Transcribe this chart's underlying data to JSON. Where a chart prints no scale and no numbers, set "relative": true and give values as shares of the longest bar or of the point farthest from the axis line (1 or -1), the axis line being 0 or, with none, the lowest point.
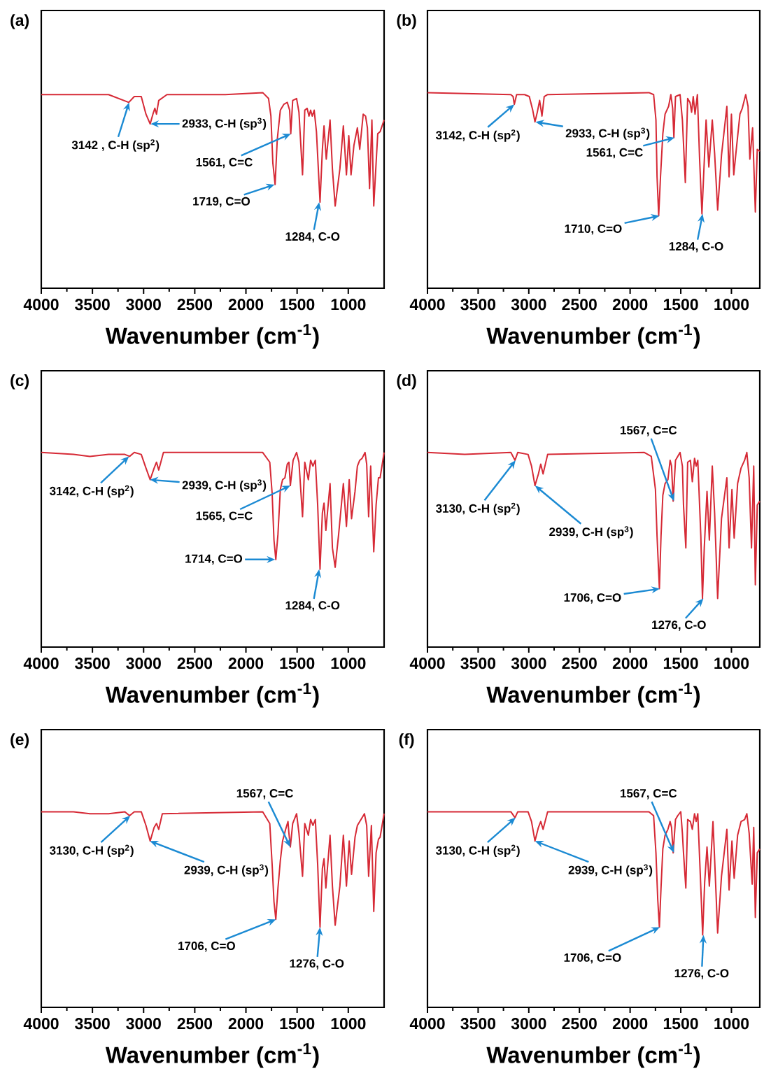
{
  "chart_data": [
    {
      "type": "line",
      "title": "(a)",
      "xlabel": "Wavenumber (cm$^{-1}$)",
      "relative": true,
      "xlim": [
        4000,
        650
      ],
      "xticks": [
        4000,
        3500,
        3000,
        2500,
        2000,
        1500,
        1000
      ],
      "x": [
        4000,
        3342,
        3145,
        3091,
        3023,
        2977,
        2936,
        2909,
        2890,
        2874,
        2852,
        2772,
        2201,
        1836,
        1779,
        1756,
        1737,
        1715,
        1694,
        1664,
        1630,
        1596,
        1573,
        1562,
        1543,
        1505,
        1482,
        1447,
        1425,
        1402,
        1384,
        1368,
        1352,
        1333,
        1311,
        1276,
        1253,
        1237,
        1215,
        1178,
        1155,
        1128,
        1082,
        1048,
        1018,
        995,
        973,
        945,
        911,
        888,
        854,
        831,
        813,
        792,
        769,
        751,
        728,
        712,
        689,
        650
      ],
      "series": [
        {
          "color": "#d62a36",
          "values": [
            0.99,
            0.99,
            0.95,
            0.98,
            0.98,
            0.89,
            0.84,
            0.89,
            0.92,
            0.89,
            0.96,
            0.99,
            0.99,
            1.0,
            0.97,
            0.88,
            0.64,
            0.53,
            0.76,
            0.91,
            0.94,
            0.95,
            0.91,
            0.79,
            0.96,
            0.97,
            0.9,
            0.58,
            0.91,
            0.92,
            0.88,
            0.91,
            0.88,
            0.91,
            0.8,
            0.44,
            0.71,
            0.83,
            0.66,
            0.86,
            0.61,
            0.42,
            0.61,
            0.83,
            0.58,
            0.78,
            0.58,
            0.73,
            0.82,
            0.71,
            0.89,
            0.88,
            0.82,
            0.51,
            0.86,
            0.42,
            0.64,
            0.79,
            0.8,
            0.86
          ]
        }
      ],
      "annotations": [
        {
          "text": "3142 , C-H (sp$^{2}$)",
          "x": 3142,
          "y": 0.95
        },
        {
          "text": "2933, C-H (sp$^{3}$)",
          "x": 2933,
          "y": 0.84
        },
        {
          "text": "1561, C=C",
          "x": 1561,
          "y": 0.79
        },
        {
          "text": "1719, C=O",
          "x": 1719,
          "y": 0.53
        },
        {
          "text": "1284, C-O",
          "x": 1284,
          "y": 0.44
        }
      ]
    },
    {
      "type": "line",
      "title": "(b)",
      "xlabel": "Wavenumber (cm$^{-1}$)",
      "relative": true,
      "xlim": [
        4000,
        720
      ],
      "xticks": [
        4000,
        3500,
        3000,
        2500,
        2000,
        1500,
        1000
      ],
      "x": [
        4000,
        3177,
        3155,
        3143,
        3120,
        3041,
        2995,
        2961,
        2939,
        2916,
        2893,
        2870,
        2848,
        2814,
        1814,
        1768,
        1745,
        1734,
        1718,
        1700,
        1677,
        1655,
        1620,
        1598,
        1580,
        1568,
        1552,
        1507,
        1484,
        1455,
        1432,
        1409,
        1393,
        1377,
        1359,
        1336,
        1314,
        1291,
        1268,
        1250,
        1223,
        1189,
        1166,
        1136,
        1098,
        1045,
        1023,
        1000,
        977,
        950,
        916,
        893,
        859,
        836,
        818,
        791,
        764,
        745,
        720
      ],
      "series": [
        {
          "color": "#d62a36",
          "values": [
            1.0,
            0.99,
            0.98,
            0.94,
            0.99,
            0.99,
            0.98,
            0.91,
            0.85,
            0.9,
            0.96,
            0.88,
            0.98,
            0.99,
            1.0,
            0.99,
            0.86,
            0.57,
            0.37,
            0.57,
            0.79,
            0.89,
            0.93,
            0.99,
            0.92,
            0.77,
            0.98,
            0.99,
            0.86,
            0.54,
            0.97,
            0.95,
            0.9,
            0.98,
            0.89,
            0.99,
            0.66,
            0.38,
            0.65,
            0.86,
            0.62,
            0.86,
            0.69,
            0.4,
            0.68,
            0.93,
            0.57,
            0.89,
            0.58,
            0.72,
            0.89,
            0.92,
            0.99,
            0.93,
            0.66,
            0.82,
            0.39,
            0.71,
            0.7
          ]
        }
      ],
      "annotations": [
        {
          "text": "3142, C-H (sp$^{2}$)",
          "x": 3142,
          "y": 0.94
        },
        {
          "text": "2933, C-H (sp$^{3}$)",
          "x": 2933,
          "y": 0.85
        },
        {
          "text": "1561, C=C",
          "x": 1561,
          "y": 0.77
        },
        {
          "text": "1710, C=O",
          "x": 1710,
          "y": 0.37
        },
        {
          "text": "1284, C-O",
          "x": 1284,
          "y": 0.38
        }
      ]
    },
    {
      "type": "line",
      "title": "(c)",
      "xlabel": "Wavenumber (cm$^{-1}$)",
      "relative": true,
      "xlim": [
        4000,
        650
      ],
      "xticks": [
        4000,
        3500,
        3000,
        2500,
        2000,
        1500,
        1000
      ],
      "x": [
        4000,
        3685,
        3525,
        3342,
        3183,
        3137,
        3091,
        3023,
        2977,
        2936,
        2897,
        2874,
        2852,
        2806,
        1836,
        1767,
        1744,
        1726,
        1708,
        1687,
        1664,
        1642,
        1619,
        1596,
        1580,
        1566,
        1539,
        1505,
        1482,
        1447,
        1425,
        1390,
        1368,
        1345,
        1322,
        1299,
        1276,
        1253,
        1237,
        1219,
        1178,
        1155,
        1128,
        1094,
        1048,
        1018,
        991,
        968,
        934,
        911,
        888,
        865,
        836,
        820,
        801,
        781,
        751,
        728,
        705,
        689,
        650
      ],
      "series": [
        {
          "color": "#d62a36",
          "values": [
            1.0,
            0.99,
            0.98,
            0.99,
            0.99,
            0.98,
            1.0,
            0.99,
            0.92,
            0.86,
            0.92,
            0.95,
            0.91,
            1.0,
            1.0,
            0.95,
            0.79,
            0.55,
            0.45,
            0.58,
            0.81,
            0.86,
            0.87,
            0.94,
            0.95,
            0.83,
            0.96,
            1.0,
            0.95,
            0.67,
            0.95,
            0.86,
            0.96,
            0.93,
            0.96,
            0.73,
            0.4,
            0.69,
            0.74,
            0.6,
            0.84,
            0.51,
            0.41,
            0.58,
            0.84,
            0.62,
            0.86,
            0.66,
            0.8,
            0.93,
            0.96,
            0.97,
            1.0,
            0.94,
            0.67,
            0.93,
            0.49,
            0.73,
            0.87,
            0.87,
            1.0
          ]
        }
      ],
      "annotations": [
        {
          "text": "3142, C-H (sp$^{2}$)",
          "x": 3142,
          "y": 0.98
        },
        {
          "text": "2939, C-H (sp$^{3}$)",
          "x": 2939,
          "y": 0.86
        },
        {
          "text": "1565, C=C",
          "x": 1565,
          "y": 0.83
        },
        {
          "text": "1714, C=O",
          "x": 1714,
          "y": 0.45
        },
        {
          "text": "1284, C-O",
          "x": 1284,
          "y": 0.4
        }
      ]
    },
    {
      "type": "line",
      "title": "(d)",
      "xlabel": "Wavenumber (cm$^{-1}$)",
      "relative": true,
      "xlim": [
        4000,
        720
      ],
      "xticks": [
        4000,
        3500,
        3000,
        2500,
        2000,
        1500,
        1000
      ],
      "x": [
        4000,
        3632,
        3177,
        3136,
        3109,
        3007,
        2973,
        2939,
        2905,
        2882,
        2859,
        2814,
        1859,
        1791,
        1750,
        1734,
        1711,
        1695,
        1677,
        1655,
        1627,
        1605,
        1591,
        1575,
        1552,
        1530,
        1507,
        1484,
        1473,
        1450,
        1432,
        1405,
        1386,
        1364,
        1348,
        1332,
        1302,
        1286,
        1268,
        1241,
        1218,
        1189,
        1166,
        1136,
        1098,
        1045,
        1023,
        995,
        973,
        939,
        905,
        870,
        848,
        825,
        802,
        780,
        764,
        745,
        720
      ],
      "series": [
        {
          "color": "#d62a36",
          "values": [
            1.0,
            0.99,
            1.0,
            0.96,
            1.0,
            0.99,
            0.93,
            0.83,
            0.89,
            0.94,
            0.89,
            0.99,
            1.0,
            0.98,
            0.81,
            0.57,
            0.3,
            0.57,
            0.78,
            0.84,
            0.86,
            0.96,
            0.93,
            0.75,
            0.96,
            0.98,
            1.0,
            0.93,
            0.73,
            0.51,
            0.95,
            0.96,
            0.85,
            0.97,
            0.93,
            0.96,
            0.57,
            0.25,
            0.51,
            0.8,
            0.55,
            0.93,
            0.69,
            0.25,
            0.66,
            0.87,
            0.51,
            0.81,
            0.56,
            0.84,
            0.92,
            0.96,
            1.0,
            0.87,
            0.51,
            0.93,
            0.32,
            0.73,
            0.75
          ]
        }
      ],
      "annotations": [
        {
          "text": "3130, C-H (sp$^{2}$)",
          "x": 3130,
          "y": 0.96
        },
        {
          "text": "2939, C-H (sp$^{3}$)",
          "x": 2939,
          "y": 0.83
        },
        {
          "text": "1567, C=C",
          "x": 1567,
          "y": 0.75
        },
        {
          "text": "1706, C=O",
          "x": 1706,
          "y": 0.3
        },
        {
          "text": "1276, C-O",
          "x": 1276,
          "y": 0.25
        }
      ]
    },
    {
      "type": "line",
      "title": "(e)",
      "xlabel": "Wavenumber (cm$^{-1}$)",
      "relative": true,
      "xlim": [
        4000,
        650
      ],
      "xticks": [
        4000,
        3500,
        3000,
        2500,
        2000,
        1500,
        1000
      ],
      "x": [
        4000,
        3685,
        3525,
        3342,
        3183,
        3137,
        3091,
        3023,
        2977,
        2936,
        2897,
        2874,
        2852,
        2817,
        1836,
        1767,
        1744,
        1726,
        1708,
        1687,
        1664,
        1642,
        1612,
        1589,
        1580,
        1566,
        1543,
        1505,
        1482,
        1447,
        1425,
        1390,
        1368,
        1345,
        1322,
        1299,
        1276,
        1253,
        1237,
        1219,
        1178,
        1155,
        1128,
        1082,
        1048,
        1018,
        991,
        968,
        934,
        911,
        888,
        842,
        820,
        801,
        774,
        751,
        728,
        705,
        689,
        650
      ],
      "series": [
        {
          "color": "#d62a36",
          "values": [
            1.0,
            1.0,
            0.99,
            0.99,
            1.0,
            0.98,
            1.0,
            1.0,
            0.93,
            0.85,
            0.92,
            0.94,
            0.91,
            0.99,
            1.0,
            0.94,
            0.73,
            0.54,
            0.45,
            0.61,
            0.75,
            0.85,
            0.91,
            0.95,
            0.89,
            0.82,
            0.94,
            0.99,
            0.89,
            0.67,
            0.94,
            0.88,
            0.96,
            0.93,
            0.96,
            0.73,
            0.41,
            0.71,
            0.76,
            0.61,
            0.88,
            0.62,
            0.42,
            0.62,
            0.88,
            0.62,
            0.85,
            0.68,
            0.87,
            0.93,
            0.95,
            0.99,
            0.93,
            0.67,
            0.93,
            0.49,
            0.79,
            0.86,
            0.87,
            0.99
          ]
        }
      ],
      "annotations": [
        {
          "text": "3130, C-H (sp$^{2}$)",
          "x": 3130,
          "y": 0.98
        },
        {
          "text": "2939, C-H (sp$^{3}$)",
          "x": 2939,
          "y": 0.85
        },
        {
          "text": "1567, C=C",
          "x": 1567,
          "y": 0.82
        },
        {
          "text": "1706, C=O",
          "x": 1706,
          "y": 0.45
        },
        {
          "text": "1276, C-O",
          "x": 1276,
          "y": 0.41
        }
      ]
    },
    {
      "type": "line",
      "title": "(f)",
      "xlabel": "Wavenumber (cm$^{-1}$)",
      "relative": true,
      "xlim": [
        4000,
        720
      ],
      "xticks": [
        4000,
        3500,
        3000,
        2500,
        2000,
        1500,
        1000
      ],
      "x": [
        4000,
        3177,
        3136,
        3109,
        3007,
        2973,
        2939,
        2905,
        2882,
        2859,
        2814,
        1814,
        1768,
        1745,
        1727,
        1711,
        1695,
        1677,
        1655,
        1627,
        1605,
        1591,
        1575,
        1552,
        1530,
        1500,
        1484,
        1473,
        1450,
        1432,
        1405,
        1386,
        1364,
        1348,
        1332,
        1302,
        1284,
        1264,
        1241,
        1218,
        1182,
        1166,
        1136,
        1098,
        1045,
        1023,
        995,
        973,
        939,
        905,
        870,
        848,
        825,
        795,
        780,
        764,
        745,
        720
      ],
      "series": [
        {
          "color": "#d62a36",
          "values": [
            1.0,
            1.0,
            0.97,
            1.0,
            1.0,
            0.95,
            0.85,
            0.92,
            0.95,
            0.91,
            1.0,
            1.0,
            0.98,
            0.79,
            0.55,
            0.41,
            0.61,
            0.81,
            0.88,
            0.91,
            0.95,
            0.92,
            0.79,
            0.96,
            0.98,
            1.0,
            0.89,
            0.79,
            0.61,
            0.96,
            0.95,
            0.91,
            0.99,
            0.95,
            0.99,
            0.61,
            0.37,
            0.64,
            0.82,
            0.62,
            0.95,
            0.76,
            0.38,
            0.67,
            0.91,
            0.6,
            0.85,
            0.66,
            0.88,
            0.95,
            0.96,
            0.99,
            0.89,
            0.63,
            0.92,
            0.46,
            0.79,
            0.81
          ]
        }
      ],
      "annotations": [
        {
          "text": "3130, C-H (sp$^{2}$)",
          "x": 3130,
          "y": 0.97
        },
        {
          "text": "2939, C-H (sp$^{3}$)",
          "x": 2939,
          "y": 0.85
        },
        {
          "text": "1567, C=C",
          "x": 1567,
          "y": 0.79
        },
        {
          "text": "1706, C=O",
          "x": 1706,
          "y": 0.41
        },
        {
          "text": "1276, C-O",
          "x": 1276,
          "y": 0.37
        }
      ]
    }
  ]
}
